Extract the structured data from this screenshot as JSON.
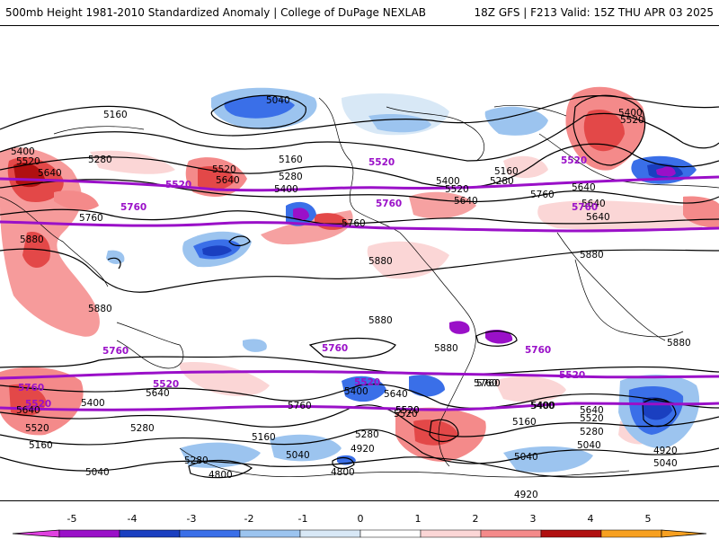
{
  "header": {
    "title_left": "500mb Height 1981-2010 Standardized Anomaly | College of DuPage NEXLAB",
    "title_right": "18Z GFS | F213 Valid: 15Z THU APR 03 2025"
  },
  "colorbar": {
    "ticks": [
      "-5",
      "-4",
      "-3",
      "-2",
      "-1",
      "0",
      "1",
      "2",
      "3",
      "4",
      "5"
    ],
    "colors": [
      "#e040e0",
      "#9a10c8",
      "#1a3fc0",
      "#3a6fe8",
      "#9cc4ef",
      "#d8e8f6",
      "#ffffff",
      "#fbd6d6",
      "#f48a8a",
      "#e34848",
      "#b01010",
      "#f7a020"
    ]
  },
  "contour_labels": {
    "black": [
      {
        "text": "5040"
      },
      {
        "text": "5160"
      },
      {
        "text": "5400"
      },
      {
        "text": "5520"
      },
      {
        "text": "5640"
      },
      {
        "text": "5280"
      },
      {
        "text": "5520"
      },
      {
        "text": "5640"
      },
      {
        "text": "5160"
      },
      {
        "text": "5280"
      },
      {
        "text": "5400"
      },
      {
        "text": "5760"
      },
      {
        "text": "5880"
      },
      {
        "text": "5760"
      },
      {
        "text": "5880"
      },
      {
        "text": "5880"
      },
      {
        "text": "5880"
      },
      {
        "text": "5880"
      },
      {
        "text": "5400"
      },
      {
        "text": "5520"
      },
      {
        "text": "5160"
      },
      {
        "text": "5280"
      },
      {
        "text": "5400"
      },
      {
        "text": "5640"
      },
      {
        "text": "5760"
      },
      {
        "text": "5640"
      },
      {
        "text": "5880"
      },
      {
        "text": "5880"
      },
      {
        "text": "5400"
      },
      {
        "text": "5520"
      },
      {
        "text": "5640"
      },
      {
        "text": "5760"
      },
      {
        "text": "5640"
      },
      {
        "text": "5400"
      },
      {
        "text": "5640"
      },
      {
        "text": "5520"
      },
      {
        "text": "5280"
      },
      {
        "text": "5160"
      },
      {
        "text": "5040"
      },
      {
        "text": "4920"
      },
      {
        "text": "4800"
      },
      {
        "text": "4800"
      },
      {
        "text": "5040"
      },
      {
        "text": "5160"
      },
      {
        "text": "5280"
      },
      {
        "text": "5520"
      },
      {
        "text": "5400"
      },
      {
        "text": "5640"
      },
      {
        "text": "5520"
      },
      {
        "text": "5280"
      },
      {
        "text": "5040"
      },
      {
        "text": "4920"
      },
      {
        "text": "5040"
      },
      {
        "text": "4920"
      },
      {
        "text": "5520"
      },
      {
        "text": "5760"
      },
      {
        "text": "5640"
      },
      {
        "text": "5400"
      },
      {
        "text": "5160"
      },
      {
        "text": "5040"
      },
      {
        "text": "5280"
      },
      {
        "text": "5640"
      },
      {
        "text": "5520"
      },
      {
        "text": "5760"
      }
    ],
    "purple": [
      {
        "text": "5520"
      },
      {
        "text": "5760"
      },
      {
        "text": "5520"
      },
      {
        "text": "5760"
      },
      {
        "text": "5520"
      },
      {
        "text": "5760"
      },
      {
        "text": "5760"
      },
      {
        "text": "5760"
      },
      {
        "text": "5760"
      },
      {
        "text": "5520"
      },
      {
        "text": "5760"
      },
      {
        "text": "5520"
      },
      {
        "text": "5520"
      },
      {
        "text": "5520"
      }
    ]
  },
  "colors": {
    "purple_contour": "#9a10c8",
    "black_contour": "#000000",
    "coast": "#000000"
  }
}
